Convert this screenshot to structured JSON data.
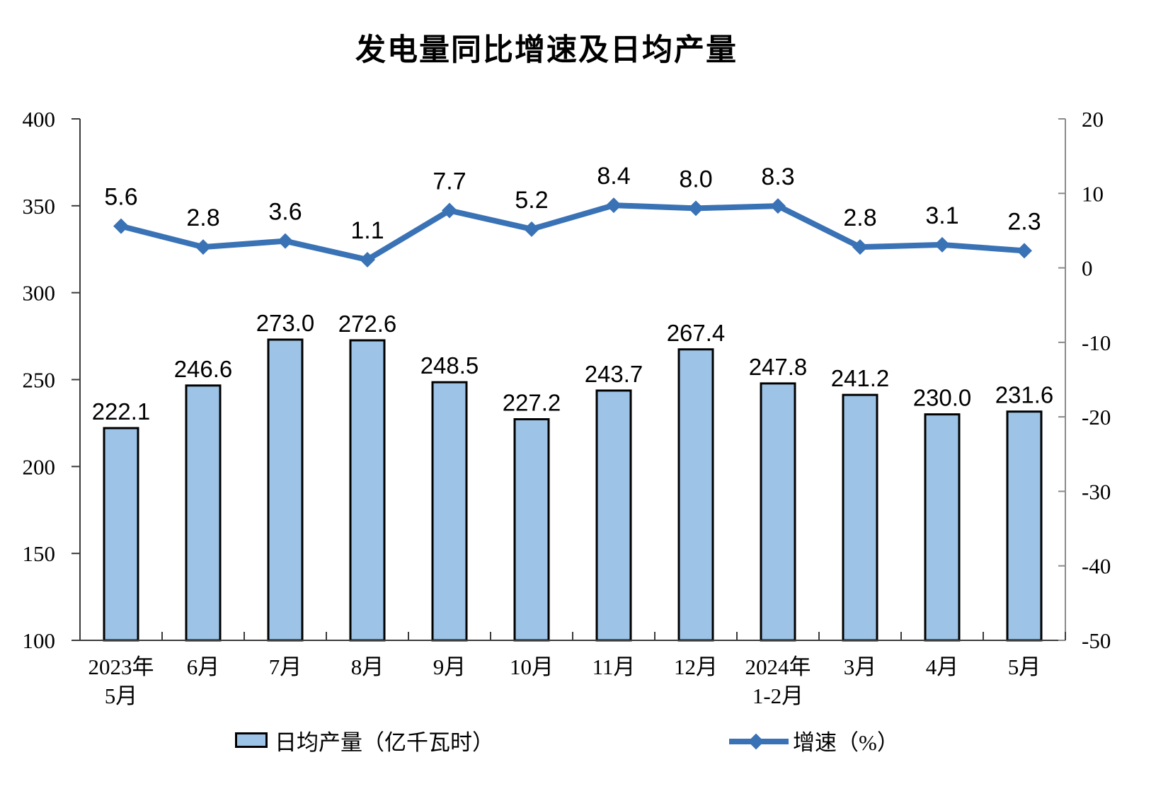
{
  "title": "发电量同比增速及日均产量",
  "legend": {
    "bar_label": "日均产量（亿千瓦时）",
    "line_label": "增速（%）"
  },
  "colors": {
    "background": "#FFFFFF",
    "bar_fill": "#9DC3E6",
    "bar_border": "#000000",
    "line": "#3A72B6",
    "axis_dark": "#3B3B3B",
    "axis_light": "#8A8A8A",
    "text": "#000000"
  },
  "chart_data": {
    "type": "bar+line",
    "title": "发电量同比增速及日均产量",
    "grid": false,
    "legend_position": "bottom",
    "categories": [
      [
        "2023年",
        "5月"
      ],
      [
        "6月"
      ],
      [
        "7月"
      ],
      [
        "8月"
      ],
      [
        "9月"
      ],
      [
        "10月"
      ],
      [
        "11月"
      ],
      [
        "12月"
      ],
      [
        "2024年",
        "1-2月"
      ],
      [
        "3月"
      ],
      [
        "4月"
      ],
      [
        "5月"
      ]
    ],
    "series": [
      {
        "name": "日均产量（亿千瓦时）",
        "type": "bar",
        "y_axis": "left",
        "values": [
          222.1,
          246.6,
          273.0,
          272.6,
          248.5,
          227.2,
          243.7,
          267.4,
          247.8,
          241.2,
          230.0,
          231.6
        ],
        "labels": [
          "222.1",
          "246.6",
          "273.0",
          "272.6",
          "248.5",
          "227.2",
          "243.7",
          "267.4",
          "247.8",
          "241.2",
          "230.0",
          "231.6"
        ]
      },
      {
        "name": "增速（%）",
        "type": "line",
        "y_axis": "right",
        "values": [
          5.6,
          2.8,
          3.6,
          1.1,
          7.7,
          5.2,
          8.4,
          8.0,
          8.3,
          2.8,
          3.1,
          2.3
        ],
        "labels": [
          "5.6",
          "2.8",
          "3.6",
          "1.1",
          "7.7",
          "5.2",
          "8.4",
          "8.0",
          "8.3",
          "2.8",
          "3.1",
          "2.3"
        ]
      }
    ],
    "left_axis": {
      "min": 100,
      "max": 400,
      "step": 50,
      "tick_values": [
        400,
        350,
        300,
        250,
        200,
        150,
        100
      ],
      "tick_labels": [
        "400",
        "350",
        "300",
        "250",
        "200",
        "150",
        "100"
      ]
    },
    "right_axis": {
      "min": -50,
      "max": 20,
      "step": 10,
      "tick_values": [
        20,
        10,
        0,
        -10,
        -20,
        -30,
        -40,
        -50
      ],
      "tick_labels": [
        "20",
        "10",
        "0",
        "-10",
        "-20",
        "-30",
        "-40",
        "-50"
      ]
    }
  }
}
